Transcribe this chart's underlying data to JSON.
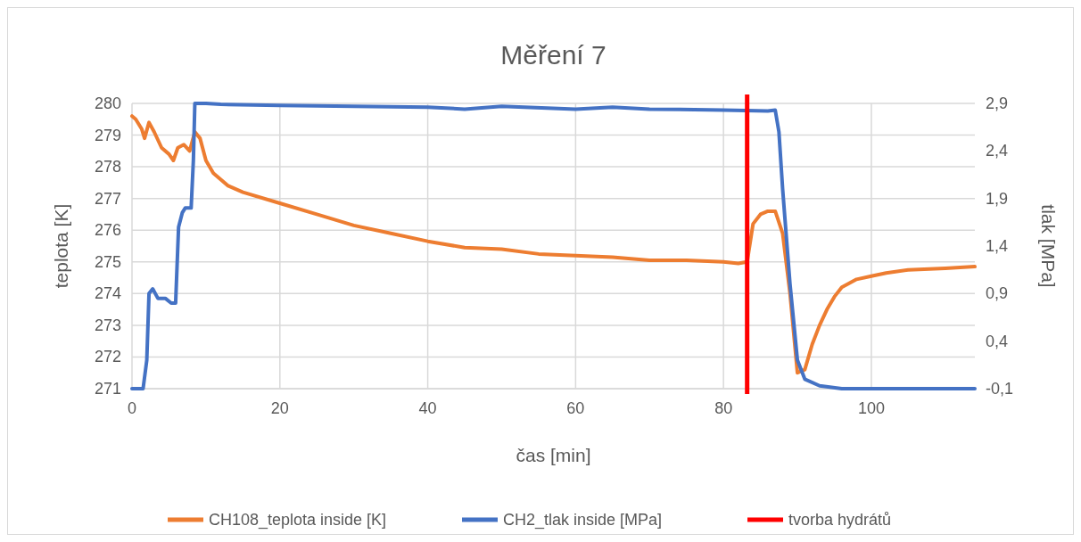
{
  "chart_data": {
    "type": "line",
    "title": "Měření 7",
    "xlabel": "čas [min]",
    "ylabel": "teplota [K]",
    "y2label": "tlak [MPa]",
    "xlim": [
      0,
      114
    ],
    "xticks": [
      0,
      20,
      40,
      60,
      80,
      100
    ],
    "ylim": [
      271,
      280
    ],
    "yticks": [
      271,
      272,
      273,
      274,
      275,
      276,
      277,
      278,
      279,
      280
    ],
    "y2lim": [
      -0.1,
      2.9
    ],
    "y2ticks": [
      {
        "value": -0.1,
        "label": "-0,1"
      },
      {
        "value": 0.4,
        "label": "0,4"
      },
      {
        "value": 0.9,
        "label": "0,9"
      },
      {
        "value": 1.4,
        "label": "1,4"
      },
      {
        "value": 1.9,
        "label": "1,9"
      },
      {
        "value": 2.4,
        "label": "2,4"
      },
      {
        "value": 2.9,
        "label": "2,9"
      }
    ],
    "grid": true,
    "legend": "bottom",
    "line_style": "solid",
    "marker": "none",
    "series": [
      {
        "name": "CH108_teplota inside [K]",
        "color": "#ed7d31",
        "x": [
          0,
          0.5,
          1.3,
          1.7,
          2.3,
          3,
          4,
          5,
          5.6,
          6.2,
          7,
          7.8,
          8.5,
          9.2,
          10,
          11,
          13,
          15,
          20,
          25,
          30,
          35,
          40,
          45,
          50,
          55,
          60,
          65,
          70,
          75,
          80,
          82,
          83.2,
          84,
          85,
          86,
          87,
          88,
          89,
          90,
          91,
          92,
          93,
          94,
          95,
          96,
          98,
          100,
          102,
          105,
          110,
          114
        ],
        "values": [
          279.6,
          279.5,
          279.2,
          278.9,
          279.4,
          279.1,
          278.6,
          278.4,
          278.2,
          278.6,
          278.7,
          278.5,
          279.1,
          278.9,
          278.2,
          277.8,
          277.4,
          277.2,
          276.85,
          276.5,
          276.15,
          275.9,
          275.65,
          275.45,
          275.4,
          275.25,
          275.2,
          275.15,
          275.05,
          275.05,
          275,
          274.95,
          275,
          276.2,
          276.5,
          276.6,
          276.6,
          275.9,
          274,
          271.5,
          271.6,
          272.4,
          273,
          273.5,
          273.9,
          274.2,
          274.45,
          274.55,
          274.65,
          274.75,
          274.8,
          274.85
        ]
      },
      {
        "name": "CH2_tlak inside [MPa]",
        "color": "#4472c4",
        "axis": "y2",
        "x": [
          0,
          1.5,
          2,
          2.3,
          2.8,
          3.5,
          4.5,
          5.3,
          5.9,
          6.3,
          6.8,
          7.2,
          8,
          8.3,
          8.5,
          9,
          10,
          12,
          20,
          30,
          40,
          45,
          50,
          60,
          65,
          70,
          80,
          86,
          87,
          87.5,
          88,
          89,
          90,
          91,
          93,
          96,
          114
        ],
        "values": [
          -0.1,
          -0.1,
          0.2,
          0.9,
          0.95,
          0.85,
          0.85,
          0.8,
          0.8,
          1.6,
          1.75,
          1.8,
          1.8,
          2.3,
          2.9,
          2.9,
          2.9,
          2.89,
          2.88,
          2.87,
          2.86,
          2.84,
          2.87,
          2.84,
          2.86,
          2.84,
          2.83,
          2.82,
          2.83,
          2.6,
          2,
          1,
          0.2,
          0,
          -0.07,
          -0.1,
          -0.1
        ]
      }
    ],
    "ref_lines": [
      {
        "axis": "x",
        "value": 83.2,
        "label": "tvorba hydrátů",
        "color": "#ff0000"
      }
    ]
  }
}
